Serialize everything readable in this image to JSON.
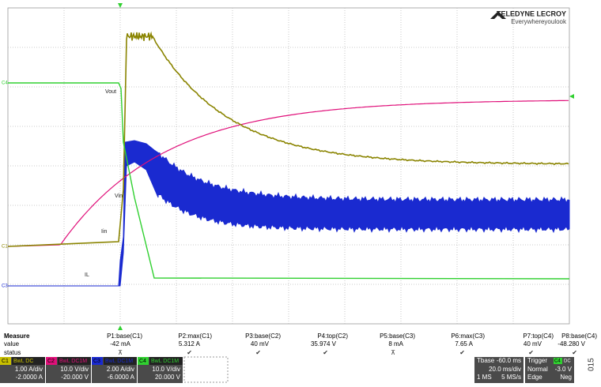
{
  "logo": {
    "brand": "TELEDYNE LECROY",
    "tagline": "Everywhereyoulook"
  },
  "trace_labels": [
    "Vout",
    "Vin",
    "Iin",
    "IL"
  ],
  "channel_markers": [
    "C4",
    "C1",
    "C3"
  ],
  "measure": {
    "title": "Measure",
    "row_labels": [
      "value",
      "status"
    ],
    "columns": [
      {
        "name": "P1:base(C1)",
        "value": "-42 mA",
        "status": "⊼"
      },
      {
        "name": "P2:max(C1)",
        "value": "5.312 A",
        "status": "✔"
      },
      {
        "name": "P3:base(C2)",
        "value": "40 mV",
        "status": "✔"
      },
      {
        "name": "P4:top(C2)",
        "value": "35.974 V",
        "status": "✔"
      },
      {
        "name": "P5:base(C3)",
        "value": "8 mA",
        "status": "⊼"
      },
      {
        "name": "P6:max(C3)",
        "value": "7.65 A",
        "status": "✔"
      },
      {
        "name": "P7:top(C4)",
        "value": "40 mV",
        "status": "✔"
      },
      {
        "name": "P8:base(C4)",
        "value": "-48.280 V",
        "status": "✔"
      }
    ]
  },
  "channels": [
    {
      "id": "C1",
      "coupling": "BwL DC",
      "scale": "1.00 A/div",
      "offset": "-2.0000 A",
      "color": "#c8c000"
    },
    {
      "id": "C2",
      "coupling": "BwL DC1M",
      "scale": "10.0 V/div",
      "offset": "-20.000 V",
      "color": "#e0107a"
    },
    {
      "id": "C3",
      "coupling": "BwL DC1M",
      "scale": "2.00 A/div",
      "offset": "-6.0000 A",
      "color": "#1a2ad0"
    },
    {
      "id": "C4",
      "coupling": "BwL DC1M",
      "scale": "10.0 V/div",
      "offset": "20.000 V",
      "color": "#30d030"
    }
  ],
  "timebase": {
    "title": "Tbase",
    "delay": "-60.0 ms",
    "rate": "20.0 ms/div",
    "samples": "1 MS",
    "sample_rate": "5 MS/s"
  },
  "trigger": {
    "title": "Trigger",
    "source": "C4",
    "coupling": "DC",
    "mode": "Normal",
    "level": "-3.0 V",
    "type": "Edge",
    "slope": "Neg"
  },
  "figure_code": "015"
}
